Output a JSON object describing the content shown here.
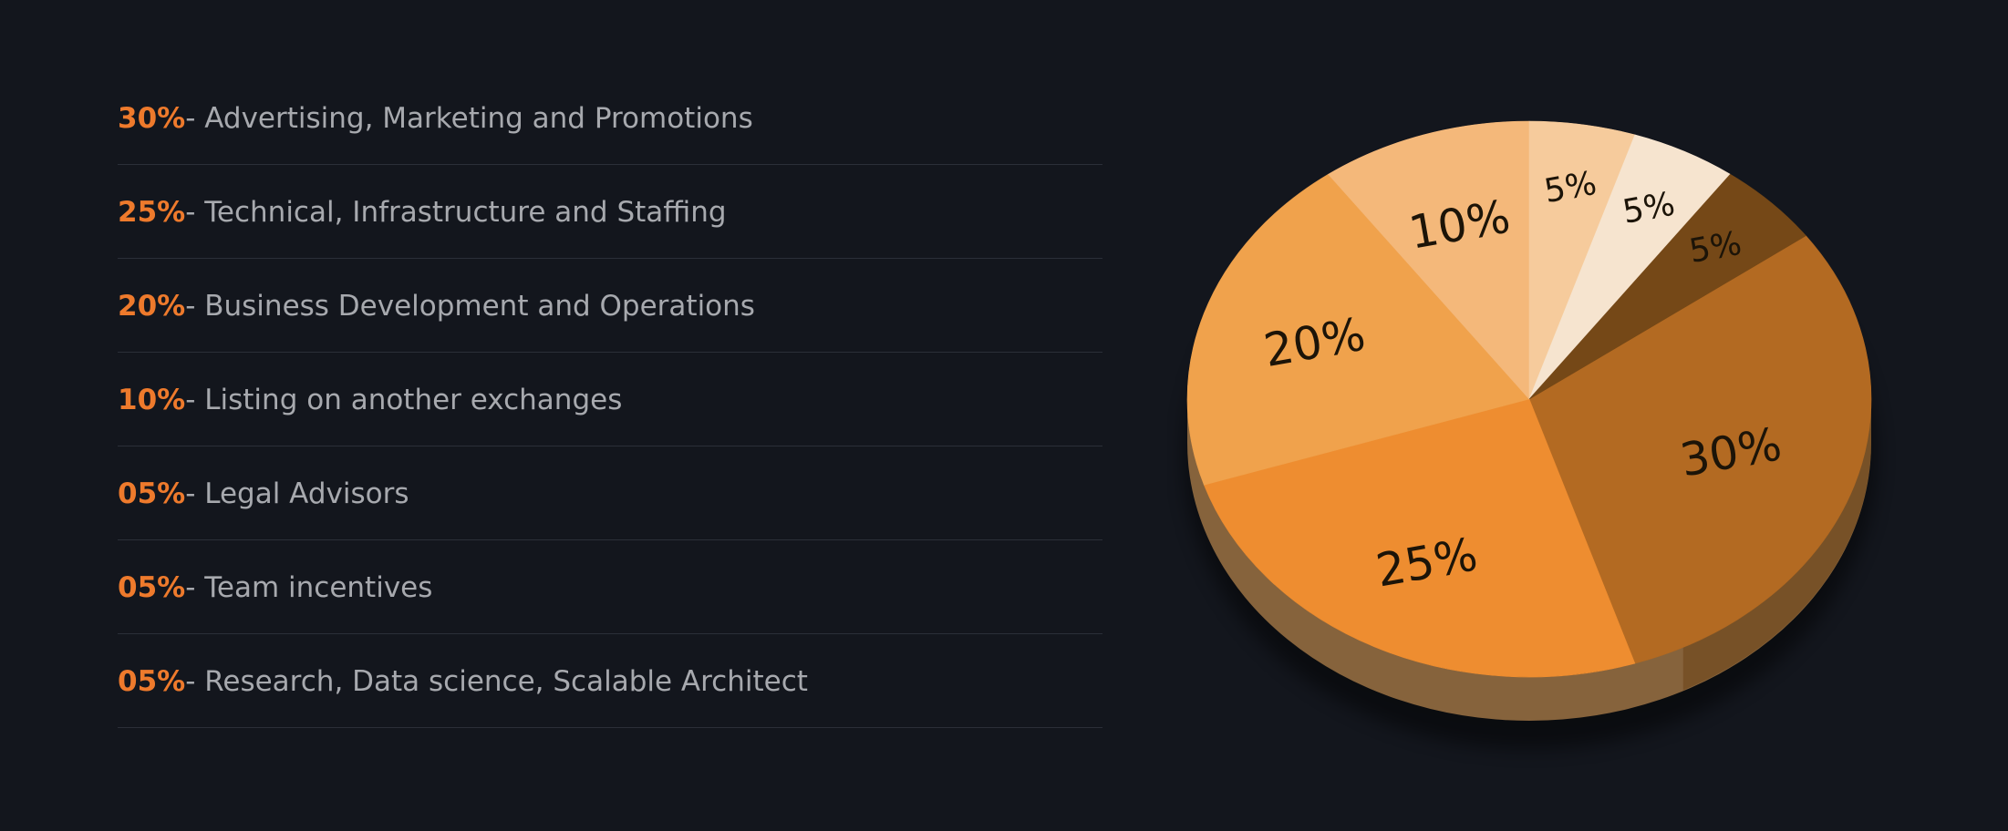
{
  "chart_data": {
    "type": "pie",
    "title": "",
    "slices": [
      {
        "value": 30,
        "value_label": "30%",
        "legend_pct": "30%",
        "legend_text": "- Advertising, Marketing and Promotions",
        "color": "#b36a22"
      },
      {
        "value": 25,
        "value_label": "25%",
        "legend_pct": "25%",
        "legend_text": "- Technical, Infrastructure and Staffing",
        "color": "#ee8d30"
      },
      {
        "value": 20,
        "value_label": "20%",
        "legend_pct": "20%",
        "legend_text": "- Business Development and Operations",
        "color": "#f0a24c"
      },
      {
        "value": 10,
        "value_label": "10%",
        "legend_pct": "10%",
        "legend_text": "- Listing on another exchanges",
        "color": "#f4b87a"
      },
      {
        "value": 5,
        "value_label": "5%",
        "legend_pct": "05%",
        "legend_text": "- Legal Advisors",
        "color": "#f6cb9c"
      },
      {
        "value": 5,
        "value_label": "5%",
        "legend_pct": "05%",
        "legend_text": "- Team incentives",
        "color": "#f6e4cf"
      },
      {
        "value": 5,
        "value_label": "5%",
        "legend_pct": "05%",
        "legend_text": "- Research, Data science, Scalable Architect",
        "color": "#754817"
      }
    ]
  },
  "theme": {
    "background": "#13161d",
    "accent": "#ee7a2c",
    "text": "#a7a9ae",
    "divider": "#2b2f38",
    "side_color": "#86633c"
  }
}
